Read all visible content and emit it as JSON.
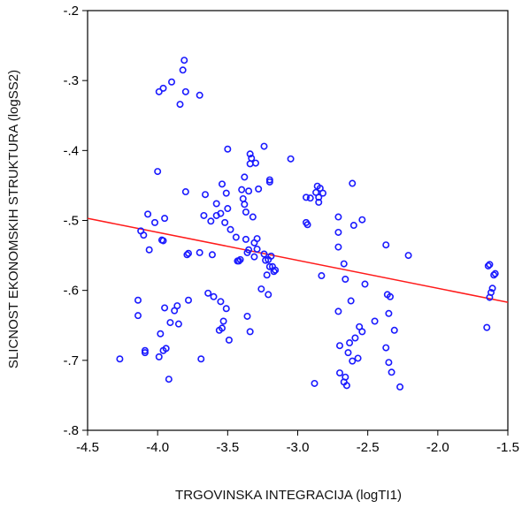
{
  "chart_data": {
    "type": "scatter",
    "title": "",
    "xlabel": "TRGOVINSKA INTEGRACIJA (logTI1)",
    "ylabel": "SLICNOST EKONOMSKIH STRUKTURA (logSS2)",
    "xlim": [
      -4.5,
      -1.5
    ],
    "ylim": [
      -0.8,
      -0.2
    ],
    "x_ticks": [
      -4.5,
      -4.0,
      -3.5,
      -3.0,
      -2.5,
      -2.0,
      -1.5
    ],
    "x_tick_labels": [
      "-4.5",
      "-4.0",
      "-3.5",
      "-3.0",
      "-2.5",
      "-2.0",
      "-1.5"
    ],
    "y_ticks": [
      -0.2,
      -0.3,
      -0.4,
      -0.5,
      -0.6,
      -0.7,
      -0.8
    ],
    "y_tick_labels": [
      "-.2",
      "-.3",
      "-.4",
      "-.5",
      "-.6",
      "-.7",
      "-.8"
    ],
    "grid": false,
    "point_color": "#1a1aff",
    "fit_line_color": "#ff1a1a",
    "fit_line": {
      "x": [
        -4.5,
        -1.5
      ],
      "y": [
        -0.497,
        -0.617
      ]
    },
    "series": [
      {
        "points": [
          [
            -4.27,
            -0.698
          ],
          [
            -4.14,
            -0.614
          ],
          [
            -4.14,
            -0.636
          ],
          [
            -4.12,
            -0.515
          ],
          [
            -4.1,
            -0.521
          ],
          [
            -4.09,
            -0.686
          ],
          [
            -4.09,
            -0.689
          ],
          [
            -4.07,
            -0.491
          ],
          [
            -4.06,
            -0.542
          ],
          [
            -4.02,
            -0.503
          ],
          [
            -4.0,
            -0.43
          ],
          [
            -3.99,
            -0.695
          ],
          [
            -3.98,
            -0.662
          ],
          [
            -3.97,
            -0.528
          ],
          [
            -3.96,
            -0.529
          ],
          [
            -3.96,
            -0.686
          ],
          [
            -3.95,
            -0.625
          ],
          [
            -3.95,
            -0.497
          ],
          [
            -3.94,
            -0.683
          ],
          [
            -3.92,
            -0.727
          ],
          [
            -3.91,
            -0.646
          ],
          [
            -3.88,
            -0.629
          ],
          [
            -3.86,
            -0.622
          ],
          [
            -3.85,
            -0.648
          ],
          [
            -3.84,
            -0.334
          ],
          [
            -3.82,
            -0.285
          ],
          [
            -3.81,
            -0.271
          ],
          [
            -3.8,
            -0.459
          ],
          [
            -3.8,
            -0.316
          ],
          [
            -3.79,
            -0.549
          ],
          [
            -3.78,
            -0.547
          ],
          [
            -3.78,
            -0.614
          ],
          [
            -3.99,
            -0.316
          ],
          [
            -3.96,
            -0.311
          ],
          [
            -3.9,
            -0.302
          ],
          [
            -3.7,
            -0.321
          ],
          [
            -3.7,
            -0.546
          ],
          [
            -3.69,
            -0.698
          ],
          [
            -3.67,
            -0.493
          ],
          [
            -3.66,
            -0.463
          ],
          [
            -3.64,
            -0.604
          ],
          [
            -3.62,
            -0.501
          ],
          [
            -3.61,
            -0.549
          ],
          [
            -3.6,
            -0.609
          ],
          [
            -3.58,
            -0.476
          ],
          [
            -3.58,
            -0.493
          ],
          [
            -3.56,
            -0.657
          ],
          [
            -3.55,
            -0.616
          ],
          [
            -3.55,
            -0.49
          ],
          [
            -3.54,
            -0.448
          ],
          [
            -3.54,
            -0.654
          ],
          [
            -3.53,
            -0.644
          ],
          [
            -3.52,
            -0.503
          ],
          [
            -3.51,
            -0.461
          ],
          [
            -3.51,
            -0.626
          ],
          [
            -3.5,
            -0.398
          ],
          [
            -3.5,
            -0.483
          ],
          [
            -3.49,
            -0.671
          ],
          [
            -3.48,
            -0.513
          ],
          [
            -3.44,
            -0.524
          ],
          [
            -3.43,
            -0.558
          ],
          [
            -3.42,
            -0.558
          ],
          [
            -3.41,
            -0.556
          ],
          [
            -3.4,
            -0.456
          ],
          [
            -3.39,
            -0.469
          ],
          [
            -3.38,
            -0.438
          ],
          [
            -3.38,
            -0.477
          ],
          [
            -3.37,
            -0.488
          ],
          [
            -3.37,
            -0.527
          ],
          [
            -3.36,
            -0.546
          ],
          [
            -3.36,
            -0.637
          ],
          [
            -3.35,
            -0.458
          ],
          [
            -3.35,
            -0.542
          ],
          [
            -3.34,
            -0.405
          ],
          [
            -3.34,
            -0.419
          ],
          [
            -3.34,
            -0.659
          ],
          [
            -3.33,
            -0.411
          ],
          [
            -3.32,
            -0.495
          ],
          [
            -3.31,
            -0.532
          ],
          [
            -3.31,
            -0.552
          ],
          [
            -3.3,
            -0.418
          ],
          [
            -3.29,
            -0.541
          ],
          [
            -3.29,
            -0.526
          ],
          [
            -3.28,
            -0.455
          ],
          [
            -3.26,
            -0.598
          ],
          [
            -3.24,
            -0.394
          ],
          [
            -3.24,
            -0.548
          ],
          [
            -3.23,
            -0.557
          ],
          [
            -3.22,
            -0.578
          ],
          [
            -3.21,
            -0.556
          ],
          [
            -3.21,
            -0.606
          ],
          [
            -3.2,
            -0.442
          ],
          [
            -3.2,
            -0.445
          ],
          [
            -3.2,
            -0.566
          ],
          [
            -3.19,
            -0.551
          ],
          [
            -3.18,
            -0.566
          ],
          [
            -3.17,
            -0.573
          ],
          [
            -3.16,
            -0.571
          ],
          [
            -3.05,
            -0.412
          ],
          [
            -2.94,
            -0.467
          ],
          [
            -2.94,
            -0.503
          ],
          [
            -2.93,
            -0.506
          ],
          [
            -2.91,
            -0.468
          ],
          [
            -2.88,
            -0.733
          ],
          [
            -2.87,
            -0.46
          ],
          [
            -2.86,
            -0.451
          ],
          [
            -2.85,
            -0.467
          ],
          [
            -2.85,
            -0.474
          ],
          [
            -2.84,
            -0.454
          ],
          [
            -2.83,
            -0.579
          ],
          [
            -2.82,
            -0.461
          ],
          [
            -2.71,
            -0.495
          ],
          [
            -2.71,
            -0.517
          ],
          [
            -2.71,
            -0.538
          ],
          [
            -2.71,
            -0.63
          ],
          [
            -2.7,
            -0.679
          ],
          [
            -2.7,
            -0.718
          ],
          [
            -2.67,
            -0.562
          ],
          [
            -2.67,
            -0.731
          ],
          [
            -2.66,
            -0.584
          ],
          [
            -2.66,
            -0.724
          ],
          [
            -2.65,
            -0.736
          ],
          [
            -2.64,
            -0.689
          ],
          [
            -2.63,
            -0.675
          ],
          [
            -2.62,
            -0.615
          ],
          [
            -2.61,
            -0.447
          ],
          [
            -2.61,
            -0.701
          ],
          [
            -2.6,
            -0.507
          ],
          [
            -2.59,
            -0.668
          ],
          [
            -2.57,
            -0.697
          ],
          [
            -2.56,
            -0.652
          ],
          [
            -2.54,
            -0.499
          ],
          [
            -2.54,
            -0.659
          ],
          [
            -2.52,
            -0.591
          ],
          [
            -2.45,
            -0.644
          ],
          [
            -2.37,
            -0.535
          ],
          [
            -2.37,
            -0.682
          ],
          [
            -2.36,
            -0.606
          ],
          [
            -2.35,
            -0.633
          ],
          [
            -2.35,
            -0.703
          ],
          [
            -2.34,
            -0.609
          ],
          [
            -2.33,
            -0.717
          ],
          [
            -2.31,
            -0.657
          ],
          [
            -2.27,
            -0.738
          ],
          [
            -2.21,
            -0.55
          ],
          [
            -1.65,
            -0.653
          ],
          [
            -1.64,
            -0.565
          ],
          [
            -1.63,
            -0.563
          ],
          [
            -1.63,
            -0.61
          ],
          [
            -1.62,
            -0.603
          ],
          [
            -1.61,
            -0.597
          ],
          [
            -1.6,
            -0.578
          ],
          [
            -1.59,
            -0.576
          ]
        ]
      }
    ]
  }
}
